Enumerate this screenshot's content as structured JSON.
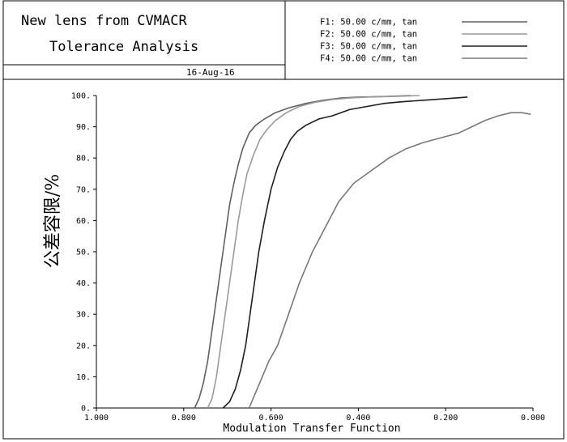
{
  "header": {
    "title_line1": "New lens from CVMACR",
    "title_line2": "Tolerance Analysis",
    "date": "16-Aug-16"
  },
  "legend": [
    {
      "label": "F1: 50.00 c/mm, tan",
      "color": "#606060"
    },
    {
      "label": "F2: 50.00 c/mm, tan",
      "color": "#9a9a9a"
    },
    {
      "label": "F3: 50.00 c/mm, tan",
      "color": "#1e1e1e"
    },
    {
      "label": "F4: 50.00 c/mm, tan",
      "color": "#787878"
    }
  ],
  "chart_data": {
    "type": "line",
    "xlabel": "Modulation Transfer Function",
    "ylabel": "公差容限/%",
    "xlim": [
      1.0,
      0.0
    ],
    "ylim": [
      0,
      100
    ],
    "x_reversed": true,
    "xticks": [
      "1.000",
      "0.800",
      "0.600",
      "0.400",
      "0.200",
      "0.000"
    ],
    "yticks": [
      "0.",
      "10.",
      "20.",
      "30.",
      "40.",
      "50.",
      "60.",
      "70.",
      "80.",
      "90.",
      "100."
    ],
    "grid": false,
    "legend_position": "top-right",
    "series": [
      {
        "name": "F1: 50.00 c/mm, tan",
        "color": "#606060",
        "points": [
          [
            0.775,
            0
          ],
          [
            0.765,
            3
          ],
          [
            0.755,
            8
          ],
          [
            0.745,
            15
          ],
          [
            0.735,
            25
          ],
          [
            0.725,
            35
          ],
          [
            0.715,
            45
          ],
          [
            0.705,
            55
          ],
          [
            0.695,
            65
          ],
          [
            0.685,
            72
          ],
          [
            0.675,
            78
          ],
          [
            0.665,
            83
          ],
          [
            0.65,
            88
          ],
          [
            0.635,
            90.5
          ],
          [
            0.615,
            92.5
          ],
          [
            0.59,
            94.5
          ],
          [
            0.56,
            96
          ],
          [
            0.52,
            97.5
          ],
          [
            0.48,
            98.5
          ],
          [
            0.44,
            99.2
          ],
          [
            0.4,
            99.5
          ],
          [
            0.34,
            99.7
          ],
          [
            0.28,
            100
          ]
        ]
      },
      {
        "name": "F2: 50.00 c/mm, tan",
        "color": "#9a9a9a",
        "points": [
          [
            0.745,
            0
          ],
          [
            0.735,
            3
          ],
          [
            0.725,
            10
          ],
          [
            0.715,
            20
          ],
          [
            0.705,
            30
          ],
          [
            0.695,
            40
          ],
          [
            0.685,
            50
          ],
          [
            0.675,
            60
          ],
          [
            0.665,
            68
          ],
          [
            0.655,
            75
          ],
          [
            0.64,
            81
          ],
          [
            0.625,
            86
          ],
          [
            0.61,
            89
          ],
          [
            0.59,
            92
          ],
          [
            0.565,
            94.5
          ],
          [
            0.535,
            96.5
          ],
          [
            0.5,
            97.8
          ],
          [
            0.46,
            98.7
          ],
          [
            0.42,
            99.2
          ],
          [
            0.38,
            99.5
          ],
          [
            0.3,
            99.8
          ],
          [
            0.26,
            100
          ]
        ]
      },
      {
        "name": "F3: 50.00 c/mm, tan",
        "color": "#1e1e1e",
        "points": [
          [
            0.71,
            0
          ],
          [
            0.695,
            2
          ],
          [
            0.682,
            6
          ],
          [
            0.67,
            12
          ],
          [
            0.658,
            20
          ],
          [
            0.648,
            30
          ],
          [
            0.638,
            40
          ],
          [
            0.628,
            50
          ],
          [
            0.615,
            60
          ],
          [
            0.6,
            70
          ],
          [
            0.585,
            77
          ],
          [
            0.57,
            82
          ],
          [
            0.555,
            86
          ],
          [
            0.54,
            88.5
          ],
          [
            0.52,
            90.5
          ],
          [
            0.49,
            92.5
          ],
          [
            0.46,
            93.5
          ],
          [
            0.42,
            95.5
          ],
          [
            0.38,
            96.5
          ],
          [
            0.34,
            97.5
          ],
          [
            0.3,
            98
          ],
          [
            0.25,
            98.5
          ],
          [
            0.2,
            99
          ],
          [
            0.15,
            99.5
          ]
        ]
      },
      {
        "name": "F4: 50.00 c/mm, tan",
        "color": "#787878",
        "points": [
          [
            0.65,
            0
          ],
          [
            0.635,
            5
          ],
          [
            0.62,
            10
          ],
          [
            0.605,
            15
          ],
          [
            0.585,
            20
          ],
          [
            0.56,
            30
          ],
          [
            0.535,
            40
          ],
          [
            0.505,
            50
          ],
          [
            0.475,
            58
          ],
          [
            0.445,
            66
          ],
          [
            0.41,
            72
          ],
          [
            0.37,
            76
          ],
          [
            0.33,
            80
          ],
          [
            0.29,
            83
          ],
          [
            0.25,
            85
          ],
          [
            0.21,
            86.5
          ],
          [
            0.17,
            88
          ],
          [
            0.14,
            90
          ],
          [
            0.11,
            92
          ],
          [
            0.08,
            93.5
          ],
          [
            0.05,
            94.5
          ],
          [
            0.025,
            94.5
          ],
          [
            0.005,
            94
          ]
        ]
      }
    ]
  }
}
